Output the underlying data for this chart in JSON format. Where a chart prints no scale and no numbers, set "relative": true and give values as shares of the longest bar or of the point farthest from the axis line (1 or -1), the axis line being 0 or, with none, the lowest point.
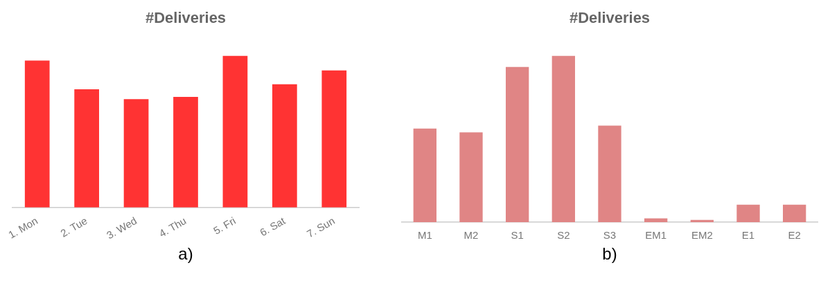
{
  "chart_data": [
    {
      "type": "bar",
      "title": "#Deliveries",
      "categories": [
        "1. Mon",
        "2. Tue",
        "3. Wed",
        "4. Thu",
        "5. Fri",
        "6. Sat",
        "7. Sun"
      ],
      "values": [
        0.968,
        0.779,
        0.714,
        0.728,
        1,
        0.811,
        0.903
      ],
      "color": "#ff3333",
      "relative": true,
      "grid": false,
      "legend": false,
      "annotations": [
        "a)"
      ]
    },
    {
      "type": "bar",
      "title": "#Deliveries",
      "categories": [
        "M1",
        "M2",
        "S1",
        "S2",
        "S3",
        "EM1",
        "EM2",
        "E1",
        "E2"
      ],
      "values": [
        0.562,
        0.539,
        0.932,
        1,
        0.58,
        0.023,
        0.014,
        0.105,
        0.105
      ],
      "color": "#e08585",
      "relative": true,
      "grid": false,
      "legend": false,
      "annotations": [
        "b)"
      ]
    }
  ]
}
